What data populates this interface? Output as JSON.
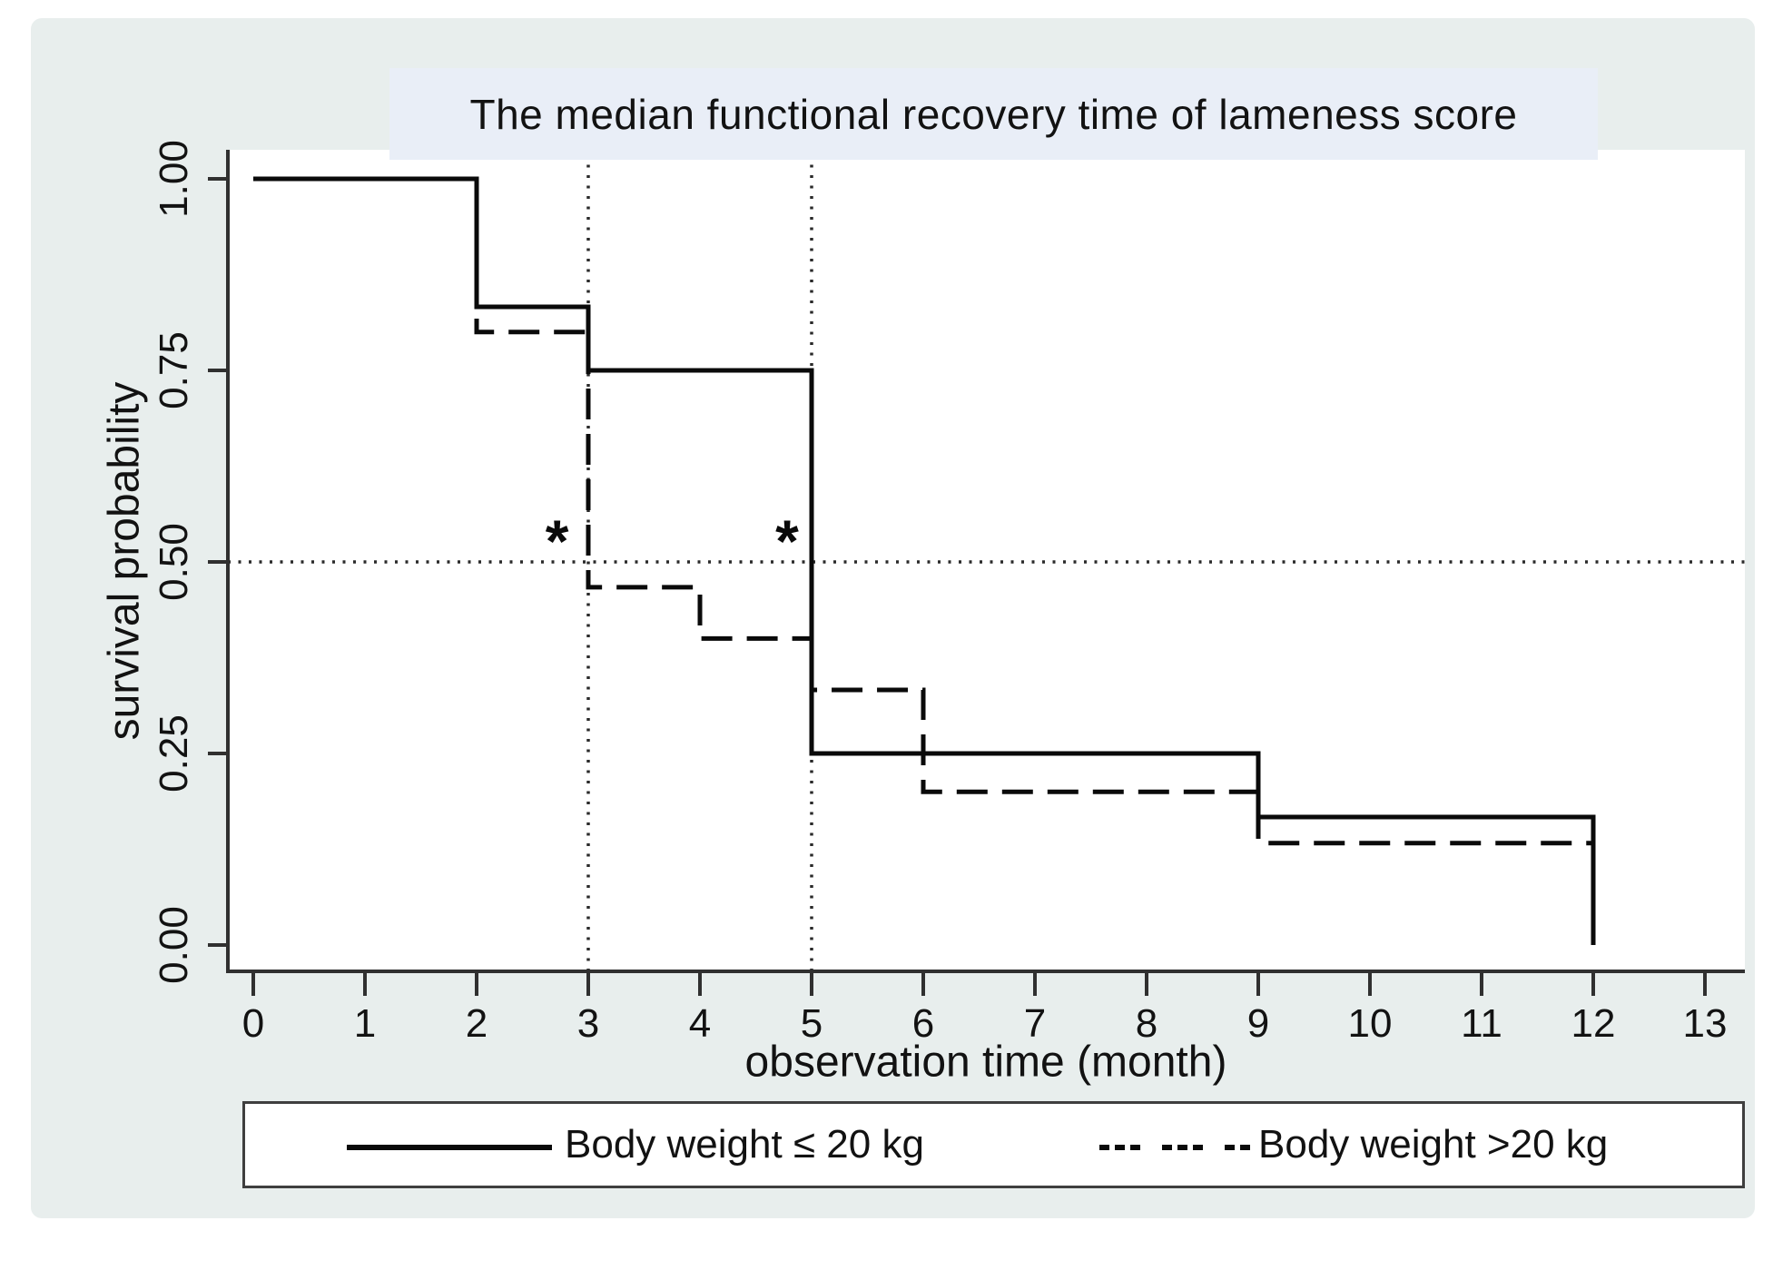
{
  "figure": {
    "title": "The median functional recovery time of lameness score",
    "xlabel": "observation time (month)",
    "ylabel": "survival probability"
  },
  "colors": {
    "page_bg": "#ffffff",
    "canvas_bg": "#e8eeed",
    "title_band_bg": "#e9eef7",
    "plot_bg": "#ffffff",
    "axis": "#303030",
    "line": "#0a0a0a",
    "reference": "#2a2a2a"
  },
  "chart_data": {
    "type": "line",
    "subtype": "kaplan-meier-step",
    "title": "The median functional recovery time of lameness score",
    "xlabel": "observation time (month)",
    "ylabel": "survival probability",
    "xlim": [
      0,
      13.35
    ],
    "ylim": [
      0,
      1.0
    ],
    "grid": false,
    "legend_position": "bottom",
    "x_ticks": [
      {
        "value": 0,
        "label": "0"
      },
      {
        "value": 1,
        "label": "1"
      },
      {
        "value": 2,
        "label": "2"
      },
      {
        "value": 3,
        "label": "3"
      },
      {
        "value": 4,
        "label": "4"
      },
      {
        "value": 5,
        "label": "5"
      },
      {
        "value": 6,
        "label": "6"
      },
      {
        "value": 7,
        "label": "7"
      },
      {
        "value": 8,
        "label": "8"
      },
      {
        "value": 9,
        "label": "9"
      },
      {
        "value": 10,
        "label": "10"
      },
      {
        "value": 11,
        "label": "11"
      },
      {
        "value": 12,
        "label": "12"
      },
      {
        "value": 13,
        "label": "13"
      }
    ],
    "y_ticks": [
      {
        "value": 0.0,
        "label": "0.00"
      },
      {
        "value": 0.25,
        "label": "0.25"
      },
      {
        "value": 0.5,
        "label": "0.50"
      },
      {
        "value": 0.75,
        "label": "0.75"
      },
      {
        "value": 1.0,
        "label": "1.00"
      }
    ],
    "series": [
      {
        "name": "Body weight ≤ 20 kg",
        "line_style": "solid",
        "color": "#0a0a0a",
        "points": [
          [
            0,
            1.0
          ],
          [
            2,
            1.0
          ],
          [
            2,
            0.833
          ],
          [
            3,
            0.833
          ],
          [
            3,
            0.75
          ],
          [
            5,
            0.75
          ],
          [
            5,
            0.25
          ],
          [
            9,
            0.25
          ],
          [
            9,
            0.167
          ],
          [
            12,
            0.167
          ],
          [
            12,
            0.0
          ]
        ]
      },
      {
        "name": "Body weight >20 kg",
        "line_style": "long-dash",
        "color": "#0a0a0a",
        "points": [
          [
            0,
            1.0
          ],
          [
            2,
            1.0
          ],
          [
            2,
            0.8
          ],
          [
            3,
            0.8
          ],
          [
            3,
            0.467
          ],
          [
            4,
            0.467
          ],
          [
            4,
            0.4
          ],
          [
            5,
            0.4
          ],
          [
            5,
            0.333
          ],
          [
            6,
            0.333
          ],
          [
            6,
            0.2
          ],
          [
            9,
            0.2
          ],
          [
            9,
            0.133
          ],
          [
            12,
            0.133
          ],
          [
            12,
            0.0
          ]
        ]
      }
    ],
    "reference_lines": [
      {
        "orientation": "horizontal",
        "value": 0.5,
        "style": "dotted"
      },
      {
        "orientation": "vertical",
        "value": 3,
        "style": "dotted"
      },
      {
        "orientation": "vertical",
        "value": 5,
        "style": "dotted"
      }
    ],
    "annotations": [
      {
        "symbol": "*",
        "x": 2.72,
        "y": 0.545
      },
      {
        "symbol": "*",
        "x": 4.78,
        "y": 0.545
      }
    ]
  },
  "legend": {
    "items": [
      {
        "label": "Body weight ≤ 20 kg",
        "line_style": "solid"
      },
      {
        "label": "Body weight >20 kg",
        "line_style": "triple-dash"
      }
    ]
  }
}
